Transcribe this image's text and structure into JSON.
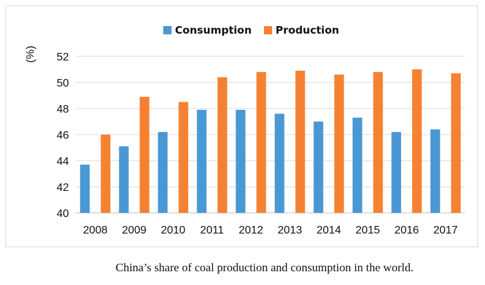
{
  "chart_data": {
    "type": "bar",
    "title": "",
    "xlabel": "",
    "ylabel": "(%)",
    "ylim": [
      40,
      52
    ],
    "yticks": [
      40,
      42,
      44,
      46,
      48,
      50,
      52
    ],
    "grid": true,
    "legend_position": "top-center",
    "categories": [
      "2008",
      "2009",
      "2010",
      "2011",
      "2012",
      "2013",
      "2014",
      "2015",
      "2016",
      "2017"
    ],
    "series": [
      {
        "name": "Consumption",
        "color": "#4a98d3",
        "values": [
          43.7,
          45.1,
          46.2,
          47.9,
          47.9,
          47.6,
          47.0,
          47.3,
          46.2,
          46.4
        ]
      },
      {
        "name": "Production",
        "color": "#f58233",
        "values": [
          46.0,
          48.9,
          48.5,
          50.4,
          50.8,
          50.9,
          50.6,
          50.8,
          51.0,
          50.7
        ]
      }
    ]
  },
  "caption": "China’s share of coal production and consumption in the world."
}
